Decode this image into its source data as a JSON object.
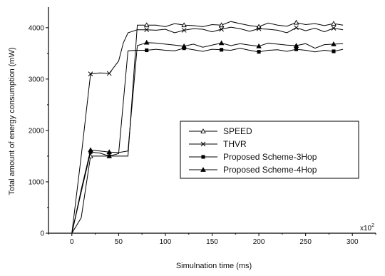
{
  "chart_data": {
    "type": "line",
    "title": "",
    "xlabel": "Simulnation time (ms)",
    "ylabel": "Total amount of energy consumption (mW)",
    "x_multiplier_label": "x10",
    "x_multiplier_exp": "2",
    "xlim": [
      -25,
      325
    ],
    "ylim": [
      0,
      4400
    ],
    "xticks": [
      0,
      50,
      100,
      150,
      200,
      250,
      300
    ],
    "yticks": [
      0,
      1000,
      2000,
      3000,
      4000
    ],
    "grid": false,
    "legend_position": "center-right",
    "series": [
      {
        "name": "SPEED",
        "marker": "triangle-open",
        "x": [
          0,
          10,
          20,
          30,
          40,
          50,
          55,
          60,
          70,
          80,
          90,
          100,
          110,
          120,
          130,
          140,
          150,
          160,
          170,
          180,
          190,
          200,
          210,
          220,
          230,
          240,
          250,
          260,
          270,
          280,
          290
        ],
        "y": [
          0,
          300,
          1500,
          1500,
          1500,
          1500,
          1500,
          1500,
          4050,
          4050,
          4050,
          4020,
          4080,
          4050,
          4040,
          4020,
          4060,
          4050,
          4120,
          4080,
          4040,
          4020,
          4090,
          4050,
          4030,
          4100,
          4060,
          4080,
          4040,
          4080,
          4050
        ]
      },
      {
        "name": "THVR",
        "marker": "x",
        "x": [
          0,
          10,
          20,
          30,
          40,
          50,
          55,
          60,
          70,
          80,
          90,
          100,
          110,
          120,
          130,
          140,
          150,
          160,
          170,
          180,
          190,
          200,
          210,
          220,
          230,
          240,
          250,
          260,
          270,
          280,
          290
        ],
        "y": [
          0,
          1500,
          3100,
          3120,
          3110,
          3350,
          3700,
          3900,
          3960,
          3960,
          3950,
          3970,
          3900,
          3950,
          3980,
          3970,
          3920,
          3970,
          4010,
          3980,
          3930,
          3980,
          3970,
          3950,
          3900,
          4000,
          3940,
          3990,
          3920,
          3990,
          3960
        ]
      },
      {
        "name": "Proposed Scheme-3Hop",
        "marker": "square-filled",
        "x": [
          0,
          10,
          20,
          30,
          40,
          50,
          60,
          70,
          80,
          90,
          100,
          110,
          120,
          130,
          140,
          150,
          160,
          170,
          180,
          190,
          200,
          210,
          220,
          230,
          240,
          250,
          260,
          270,
          280,
          290
        ],
        "y": [
          0,
          800,
          1580,
          1560,
          1500,
          1550,
          3550,
          3560,
          3560,
          3580,
          3560,
          3550,
          3600,
          3570,
          3540,
          3580,
          3570,
          3560,
          3600,
          3560,
          3530,
          3560,
          3570,
          3540,
          3580,
          3560,
          3530,
          3560,
          3540,
          3580
        ]
      },
      {
        "name": "Proposed Scheme-4Hop",
        "marker": "triangle-filled",
        "x": [
          0,
          10,
          20,
          30,
          40,
          50,
          60,
          70,
          80,
          90,
          100,
          110,
          120,
          130,
          140,
          150,
          160,
          170,
          180,
          190,
          200,
          210,
          220,
          230,
          240,
          250,
          260,
          270,
          280,
          290
        ],
        "y": [
          0,
          850,
          1620,
          1600,
          1580,
          1570,
          1600,
          3650,
          3710,
          3700,
          3680,
          3660,
          3640,
          3680,
          3620,
          3660,
          3700,
          3650,
          3690,
          3660,
          3640,
          3700,
          3680,
          3660,
          3650,
          3690,
          3600,
          3670,
          3680,
          3690
        ]
      }
    ]
  }
}
